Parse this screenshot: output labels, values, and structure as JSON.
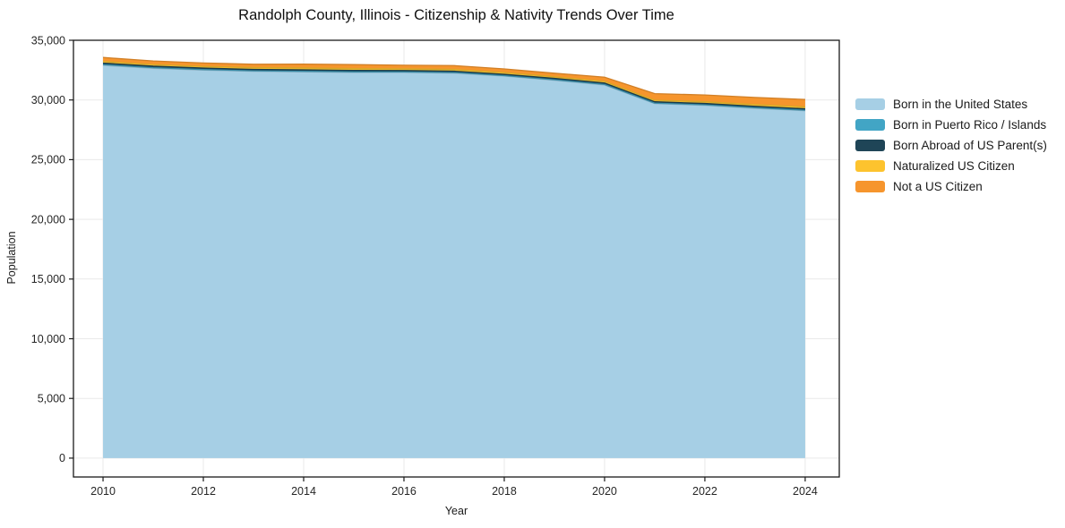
{
  "chart_data": {
    "type": "area",
    "stacked": true,
    "title": "Randolph County, Illinois - Citizenship & Nativity Trends Over Time",
    "xlabel": "Year",
    "ylabel": "Population",
    "x": [
      2010,
      2011,
      2012,
      2013,
      2014,
      2015,
      2016,
      2017,
      2018,
      2019,
      2020,
      2021,
      2022,
      2023,
      2024
    ],
    "series": [
      {
        "name": "Born in the United States",
        "color": "#a6cfe5",
        "values": [
          32900,
          32650,
          32500,
          32400,
          32350,
          32300,
          32300,
          32250,
          32000,
          31650,
          31250,
          29700,
          29550,
          29300,
          29100
        ]
      },
      {
        "name": "Born in Puerto Rico / Islands",
        "color": "#42a5c5",
        "values": [
          60,
          55,
          50,
          45,
          50,
          55,
          50,
          45,
          40,
          45,
          50,
          40,
          45,
          50,
          45
        ]
      },
      {
        "name": "Born Abroad of US Parent(s)",
        "color": "#1f4557",
        "values": [
          130,
          125,
          120,
          115,
          120,
          125,
          120,
          115,
          110,
          115,
          120,
          110,
          115,
          120,
          115
        ]
      },
      {
        "name": "Naturalized US Citizen",
        "color": "#fdc32e",
        "values": [
          140,
          135,
          140,
          150,
          160,
          150,
          140,
          150,
          140,
          130,
          140,
          130,
          140,
          150,
          160
        ]
      },
      {
        "name": "Not a US Citizen",
        "color": "#f6952d",
        "values": [
          330,
          300,
          290,
          280,
          320,
          330,
          300,
          320,
          310,
          300,
          350,
          550,
          570,
          590,
          620
        ]
      }
    ],
    "axes": {
      "xlim": [
        2009.41,
        2024.68
      ],
      "ylim": [
        -1580,
        35000
      ],
      "yticks": [
        0,
        5000,
        10000,
        15000,
        20000,
        25000,
        30000,
        35000
      ],
      "ytick_labels": [
        "0",
        "5,000",
        "10,000",
        "15,000",
        "20,000",
        "25,000",
        "30,000",
        "35,000"
      ],
      "xticks": [
        2010,
        2012,
        2014,
        2016,
        2018,
        2020,
        2022,
        2024
      ],
      "xtick_labels": [
        "2010",
        "2012",
        "2014",
        "2016",
        "2018",
        "2020",
        "2022",
        "2024"
      ],
      "grid": true
    },
    "legend_position": "right"
  },
  "style": {
    "frame_color": "#1a1a1a",
    "grid_color": "#e9e9e9",
    "tick_color": "#1a1a1a",
    "tick_label_color": "#262626",
    "background": "#ffffff"
  }
}
